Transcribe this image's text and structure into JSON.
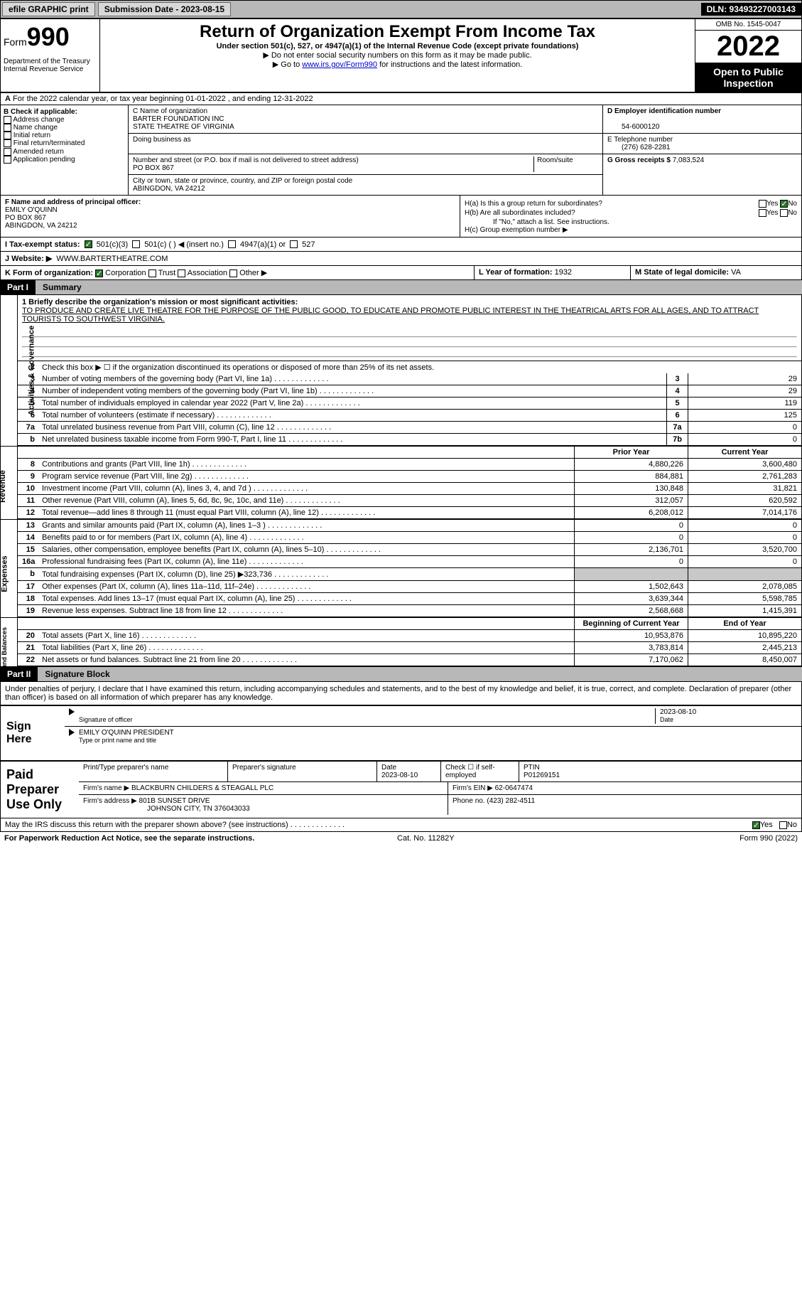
{
  "header": {
    "efile": "efile GRAPHIC print",
    "submission_label": "Submission Date - 2023-08-15",
    "dln": "DLN: 93493227003143"
  },
  "form": {
    "prefix": "Form",
    "number": "990",
    "title": "Return of Organization Exempt From Income Tax",
    "subtitle": "Under section 501(c), 527, or 4947(a)(1) of the Internal Revenue Code (except private foundations)",
    "note1": "▶ Do not enter social security numbers on this form as it may be made public.",
    "note2_pre": "▶ Go to ",
    "note2_link": "www.irs.gov/Form990",
    "note2_post": " for instructions and the latest information.",
    "dept": "Department of the Treasury\nInternal Revenue Service",
    "omb": "OMB No. 1545-0047",
    "year": "2022",
    "inspect": "Open to Public Inspection"
  },
  "row_a": "For the 2022 calendar year, or tax year beginning 01-01-2022    , and ending 12-31-2022",
  "col_b": {
    "label": "B Check if applicable:",
    "opts": [
      "Address change",
      "Name change",
      "Initial return",
      "Final return/terminated",
      "Amended return",
      "Application pending"
    ]
  },
  "col_c": {
    "name_label": "C Name of organization",
    "name1": "BARTER FOUNDATION INC",
    "name2": "STATE THEATRE OF VIRGINIA",
    "dba_label": "Doing business as",
    "street_label": "Number and street (or P.O. box if mail is not delivered to street address)",
    "room_label": "Room/suite",
    "street": "PO BOX 867",
    "city_label": "City or town, state or province, country, and ZIP or foreign postal code",
    "city": "ABINGDON, VA  24212"
  },
  "col_d": {
    "ein_label": "D Employer identification number",
    "ein": "54-6000120",
    "phone_label": "E Telephone number",
    "phone": "(276) 628-2281",
    "gross_label": "G Gross receipts $",
    "gross": "7,083,524"
  },
  "col_f": {
    "label": "F  Name and address of principal officer:",
    "name": "EMILY O'QUINN",
    "addr1": "PO BOX 867",
    "addr2": "ABINGDON, VA  24212"
  },
  "col_h": {
    "ha": "H(a)  Is this a group return for subordinates?",
    "ha_ans": "No",
    "hb": "H(b)  Are all subordinates included?",
    "hb_note": "If \"No,\" attach a list. See instructions.",
    "hc": "H(c)  Group exemption number ▶"
  },
  "row_i": {
    "label": "I   Tax-exempt status:",
    "o1": "501(c)(3)",
    "o2": "501(c) (      ) ◀ (insert no.)",
    "o3": "4947(a)(1) or",
    "o4": "527"
  },
  "row_j": {
    "label": "J   Website: ▶",
    "site": "WWW.BARTERTHEATRE.COM"
  },
  "row_k": {
    "label": "K Form of organization:",
    "o1": "Corporation",
    "o2": "Trust",
    "o3": "Association",
    "o4": "Other ▶"
  },
  "row_l": {
    "label": "L Year of formation:",
    "val": "1932"
  },
  "row_m": {
    "label": "M State of legal domicile:",
    "val": "VA"
  },
  "part1": {
    "num": "Part I",
    "title": "Summary"
  },
  "mission_label": "1   Briefly describe the organization's mission or most significant activities:",
  "mission": "TO PRODUCE AND CREATE LIVE THEATRE FOR THE PURPOSE OF THE PUBLIC GOOD, TO EDUCATE AND PROMOTE PUBLIC INTEREST IN THE THEATRICAL ARTS FOR ALL AGES, AND TO ATTRACT TOURISTS TO SOUTHWEST VIRGINIA.",
  "line2": "Check this box ▶ ☐  if the organization discontinued its operations or disposed of more than 25% of its net assets.",
  "lines_ag": [
    {
      "n": "3",
      "d": "Number of voting members of the governing body (Part VI, line 1a)",
      "b": "3",
      "v": "29"
    },
    {
      "n": "4",
      "d": "Number of independent voting members of the governing body (Part VI, line 1b)",
      "b": "4",
      "v": "29"
    },
    {
      "n": "5",
      "d": "Total number of individuals employed in calendar year 2022 (Part V, line 2a)",
      "b": "5",
      "v": "119"
    },
    {
      "n": "6",
      "d": "Total number of volunteers (estimate if necessary)",
      "b": "6",
      "v": "125"
    },
    {
      "n": "7a",
      "d": "Total unrelated business revenue from Part VIII, column (C), line 12",
      "b": "7a",
      "v": "0"
    },
    {
      "n": "b",
      "d": "Net unrelated business taxable income from Form 990-T, Part I, line 11",
      "b": "7b",
      "v": "0"
    }
  ],
  "hdr_py": "Prior Year",
  "hdr_cy": "Current Year",
  "lines_rev": [
    {
      "n": "8",
      "d": "Contributions and grants (Part VIII, line 1h)",
      "py": "4,880,226",
      "cy": "3,600,480"
    },
    {
      "n": "9",
      "d": "Program service revenue (Part VIII, line 2g)",
      "py": "884,881",
      "cy": "2,761,283"
    },
    {
      "n": "10",
      "d": "Investment income (Part VIII, column (A), lines 3, 4, and 7d )",
      "py": "130,848",
      "cy": "31,821"
    },
    {
      "n": "11",
      "d": "Other revenue (Part VIII, column (A), lines 5, 6d, 8c, 9c, 10c, and 11e)",
      "py": "312,057",
      "cy": "620,592"
    },
    {
      "n": "12",
      "d": "Total revenue—add lines 8 through 11 (must equal Part VIII, column (A), line 12)",
      "py": "6,208,012",
      "cy": "7,014,176"
    }
  ],
  "lines_exp": [
    {
      "n": "13",
      "d": "Grants and similar amounts paid (Part IX, column (A), lines 1–3 )",
      "py": "0",
      "cy": "0"
    },
    {
      "n": "14",
      "d": "Benefits paid to or for members (Part IX, column (A), line 4)",
      "py": "0",
      "cy": "0"
    },
    {
      "n": "15",
      "d": "Salaries, other compensation, employee benefits (Part IX, column (A), lines 5–10)",
      "py": "2,136,701",
      "cy": "3,520,700"
    },
    {
      "n": "16a",
      "d": "Professional fundraising fees (Part IX, column (A), line 11e)",
      "py": "0",
      "cy": "0"
    },
    {
      "n": "b",
      "d": "Total fundraising expenses (Part IX, column (D), line 25) ▶323,736",
      "py": "",
      "cy": "",
      "shade": true
    },
    {
      "n": "17",
      "d": "Other expenses (Part IX, column (A), lines 11a–11d, 11f–24e)",
      "py": "1,502,643",
      "cy": "2,078,085"
    },
    {
      "n": "18",
      "d": "Total expenses. Add lines 13–17 (must equal Part IX, column (A), line 25)",
      "py": "3,639,344",
      "cy": "5,598,785"
    },
    {
      "n": "19",
      "d": "Revenue less expenses. Subtract line 18 from line 12",
      "py": "2,568,668",
      "cy": "1,415,391"
    }
  ],
  "hdr_boy": "Beginning of Current Year",
  "hdr_eoy": "End of Year",
  "lines_net": [
    {
      "n": "20",
      "d": "Total assets (Part X, line 16)",
      "py": "10,953,876",
      "cy": "10,895,220"
    },
    {
      "n": "21",
      "d": "Total liabilities (Part X, line 26)",
      "py": "3,783,814",
      "cy": "2,445,213"
    },
    {
      "n": "22",
      "d": "Net assets or fund balances. Subtract line 21 from line 20",
      "py": "7,170,062",
      "cy": "8,450,007"
    }
  ],
  "vtabs": {
    "ag": "Activities & Governance",
    "rev": "Revenue",
    "exp": "Expenses",
    "net": "Net Assets or\nFund Balances"
  },
  "part2": {
    "num": "Part II",
    "title": "Signature Block"
  },
  "sig_decl": "Under penalties of perjury, I declare that I have examined this return, including accompanying schedules and statements, and to the best of my knowledge and belief, it is true, correct, and complete. Declaration of preparer (other than officer) is based on all information of which preparer has any knowledge.",
  "sign_here": "Sign Here",
  "sig_date": "2023-08-10",
  "sig_of": "Signature of officer",
  "sig_date_lbl": "Date",
  "sig_name": "EMILY O'QUINN  PRESIDENT",
  "sig_name_lbl": "Type or print name and title",
  "paid_prep": "Paid Preparer Use Only",
  "prep": {
    "h_name": "Print/Type preparer's name",
    "h_sig": "Preparer's signature",
    "h_date": "Date",
    "date": "2023-08-10",
    "h_check": "Check ☐ if self-employed",
    "h_ptin": "PTIN",
    "ptin": "P01269151",
    "firm_lbl": "Firm's name     ▶",
    "firm": "BLACKBURN CHILDERS & STEAGALL PLC",
    "ein_lbl": "Firm's EIN ▶",
    "ein": "62-0647474",
    "addr_lbl": "Firm's address ▶",
    "addr1": "801B SUNSET DRIVE",
    "addr2": "JOHNSON CITY, TN  376043033",
    "phone_lbl": "Phone no.",
    "phone": "(423) 282-4511"
  },
  "irs_discuss": "May the IRS discuss this return with the preparer shown above? (see instructions)",
  "footer": {
    "l": "For Paperwork Reduction Act Notice, see the separate instructions.",
    "c": "Cat. No. 11282Y",
    "r": "Form 990 (2022)"
  }
}
